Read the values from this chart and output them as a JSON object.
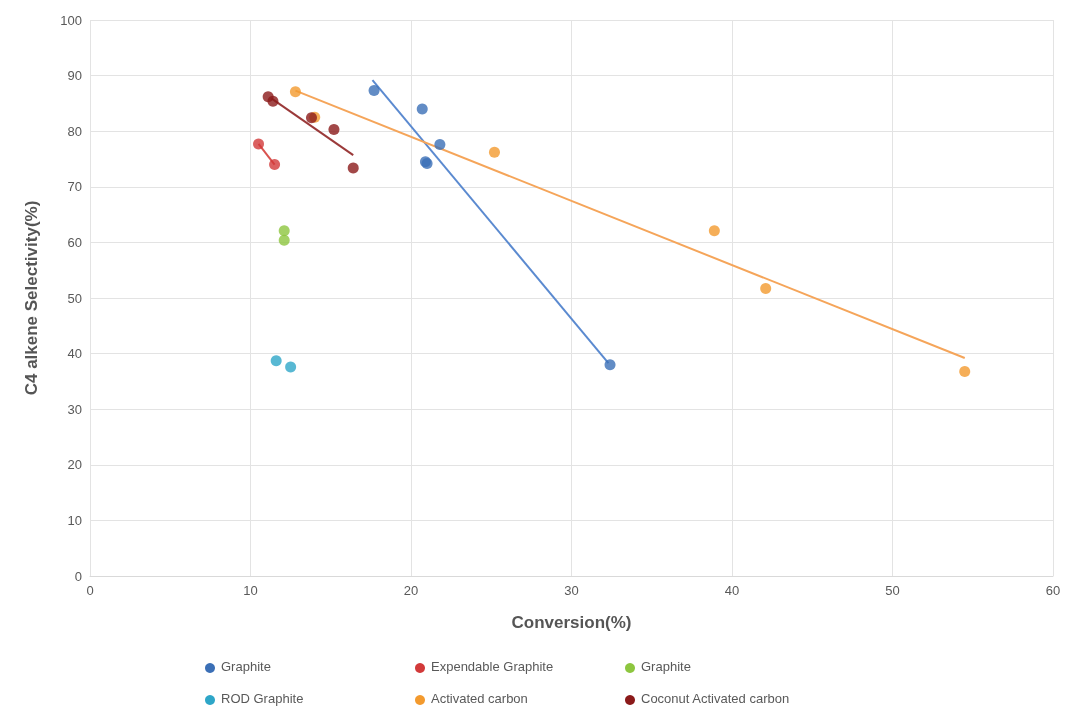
{
  "chart_data": {
    "type": "scatter",
    "xlabel": "Conversion(%)",
    "ylabel": "C4 alkene Selectivity(%)",
    "xlim": [
      0,
      60
    ],
    "xticks": [
      0,
      10,
      20,
      30,
      40,
      50,
      60
    ],
    "ylim": [
      0,
      100
    ],
    "yticks": [
      0,
      10,
      20,
      30,
      40,
      50,
      60,
      70,
      80,
      90,
      100
    ],
    "grid": true,
    "legend": "bottom",
    "marker": "circle",
    "series": [
      {
        "name": "Graphite",
        "color": "#3b6fb6",
        "x": [
          17.7,
          20.7,
          21.8,
          20.9,
          21.0,
          32.4
        ],
        "values": [
          87.3,
          84.0,
          77.6,
          74.5,
          74.2,
          38.0
        ]
      },
      {
        "name": "Expendable Graphite",
        "color": "#d23a3a",
        "x": [
          10.5,
          11.5
        ],
        "values": [
          77.7,
          74.0
        ]
      },
      {
        "name": "Graphite",
        "color": "#8dc63f",
        "x": [
          12.1,
          12.1
        ],
        "values": [
          62.1,
          60.4
        ]
      },
      {
        "name": "ROD Graphite",
        "color": "#2ea6c8",
        "x": [
          11.6,
          12.5
        ],
        "values": [
          38.7,
          37.6
        ]
      },
      {
        "name": "Activated carbon",
        "color": "#f39a2e",
        "x": [
          12.8,
          14.0,
          25.2,
          38.9,
          42.1,
          54.5
        ],
        "values": [
          87.1,
          82.5,
          76.2,
          62.1,
          51.7,
          36.8
        ]
      },
      {
        "name": "Coconut Activated carbon",
        "color": "#8b1a1a",
        "x": [
          11.1,
          11.4,
          13.8,
          15.2,
          16.4
        ],
        "values": [
          86.2,
          85.4,
          82.4,
          80.3,
          73.4
        ]
      },
      {
        "type": "line",
        "marker": "none",
        "color": "#5b8ad0",
        "x": [
          17.6,
          32.3
        ],
        "values": [
          89.2,
          38.3
        ]
      },
      {
        "type": "line",
        "marker": "none",
        "color": "#d9534f",
        "x": [
          10.5,
          11.5
        ],
        "values": [
          77.7,
          74.0
        ]
      },
      {
        "type": "line",
        "marker": "none",
        "color": "#f5a55a",
        "x": [
          12.8,
          54.5
        ],
        "values": [
          87.3,
          39.2
        ]
      },
      {
        "type": "line",
        "marker": "none",
        "color": "#9b3a3a",
        "x": [
          11.3,
          16.4
        ],
        "values": [
          85.9,
          75.7
        ]
      }
    ]
  }
}
